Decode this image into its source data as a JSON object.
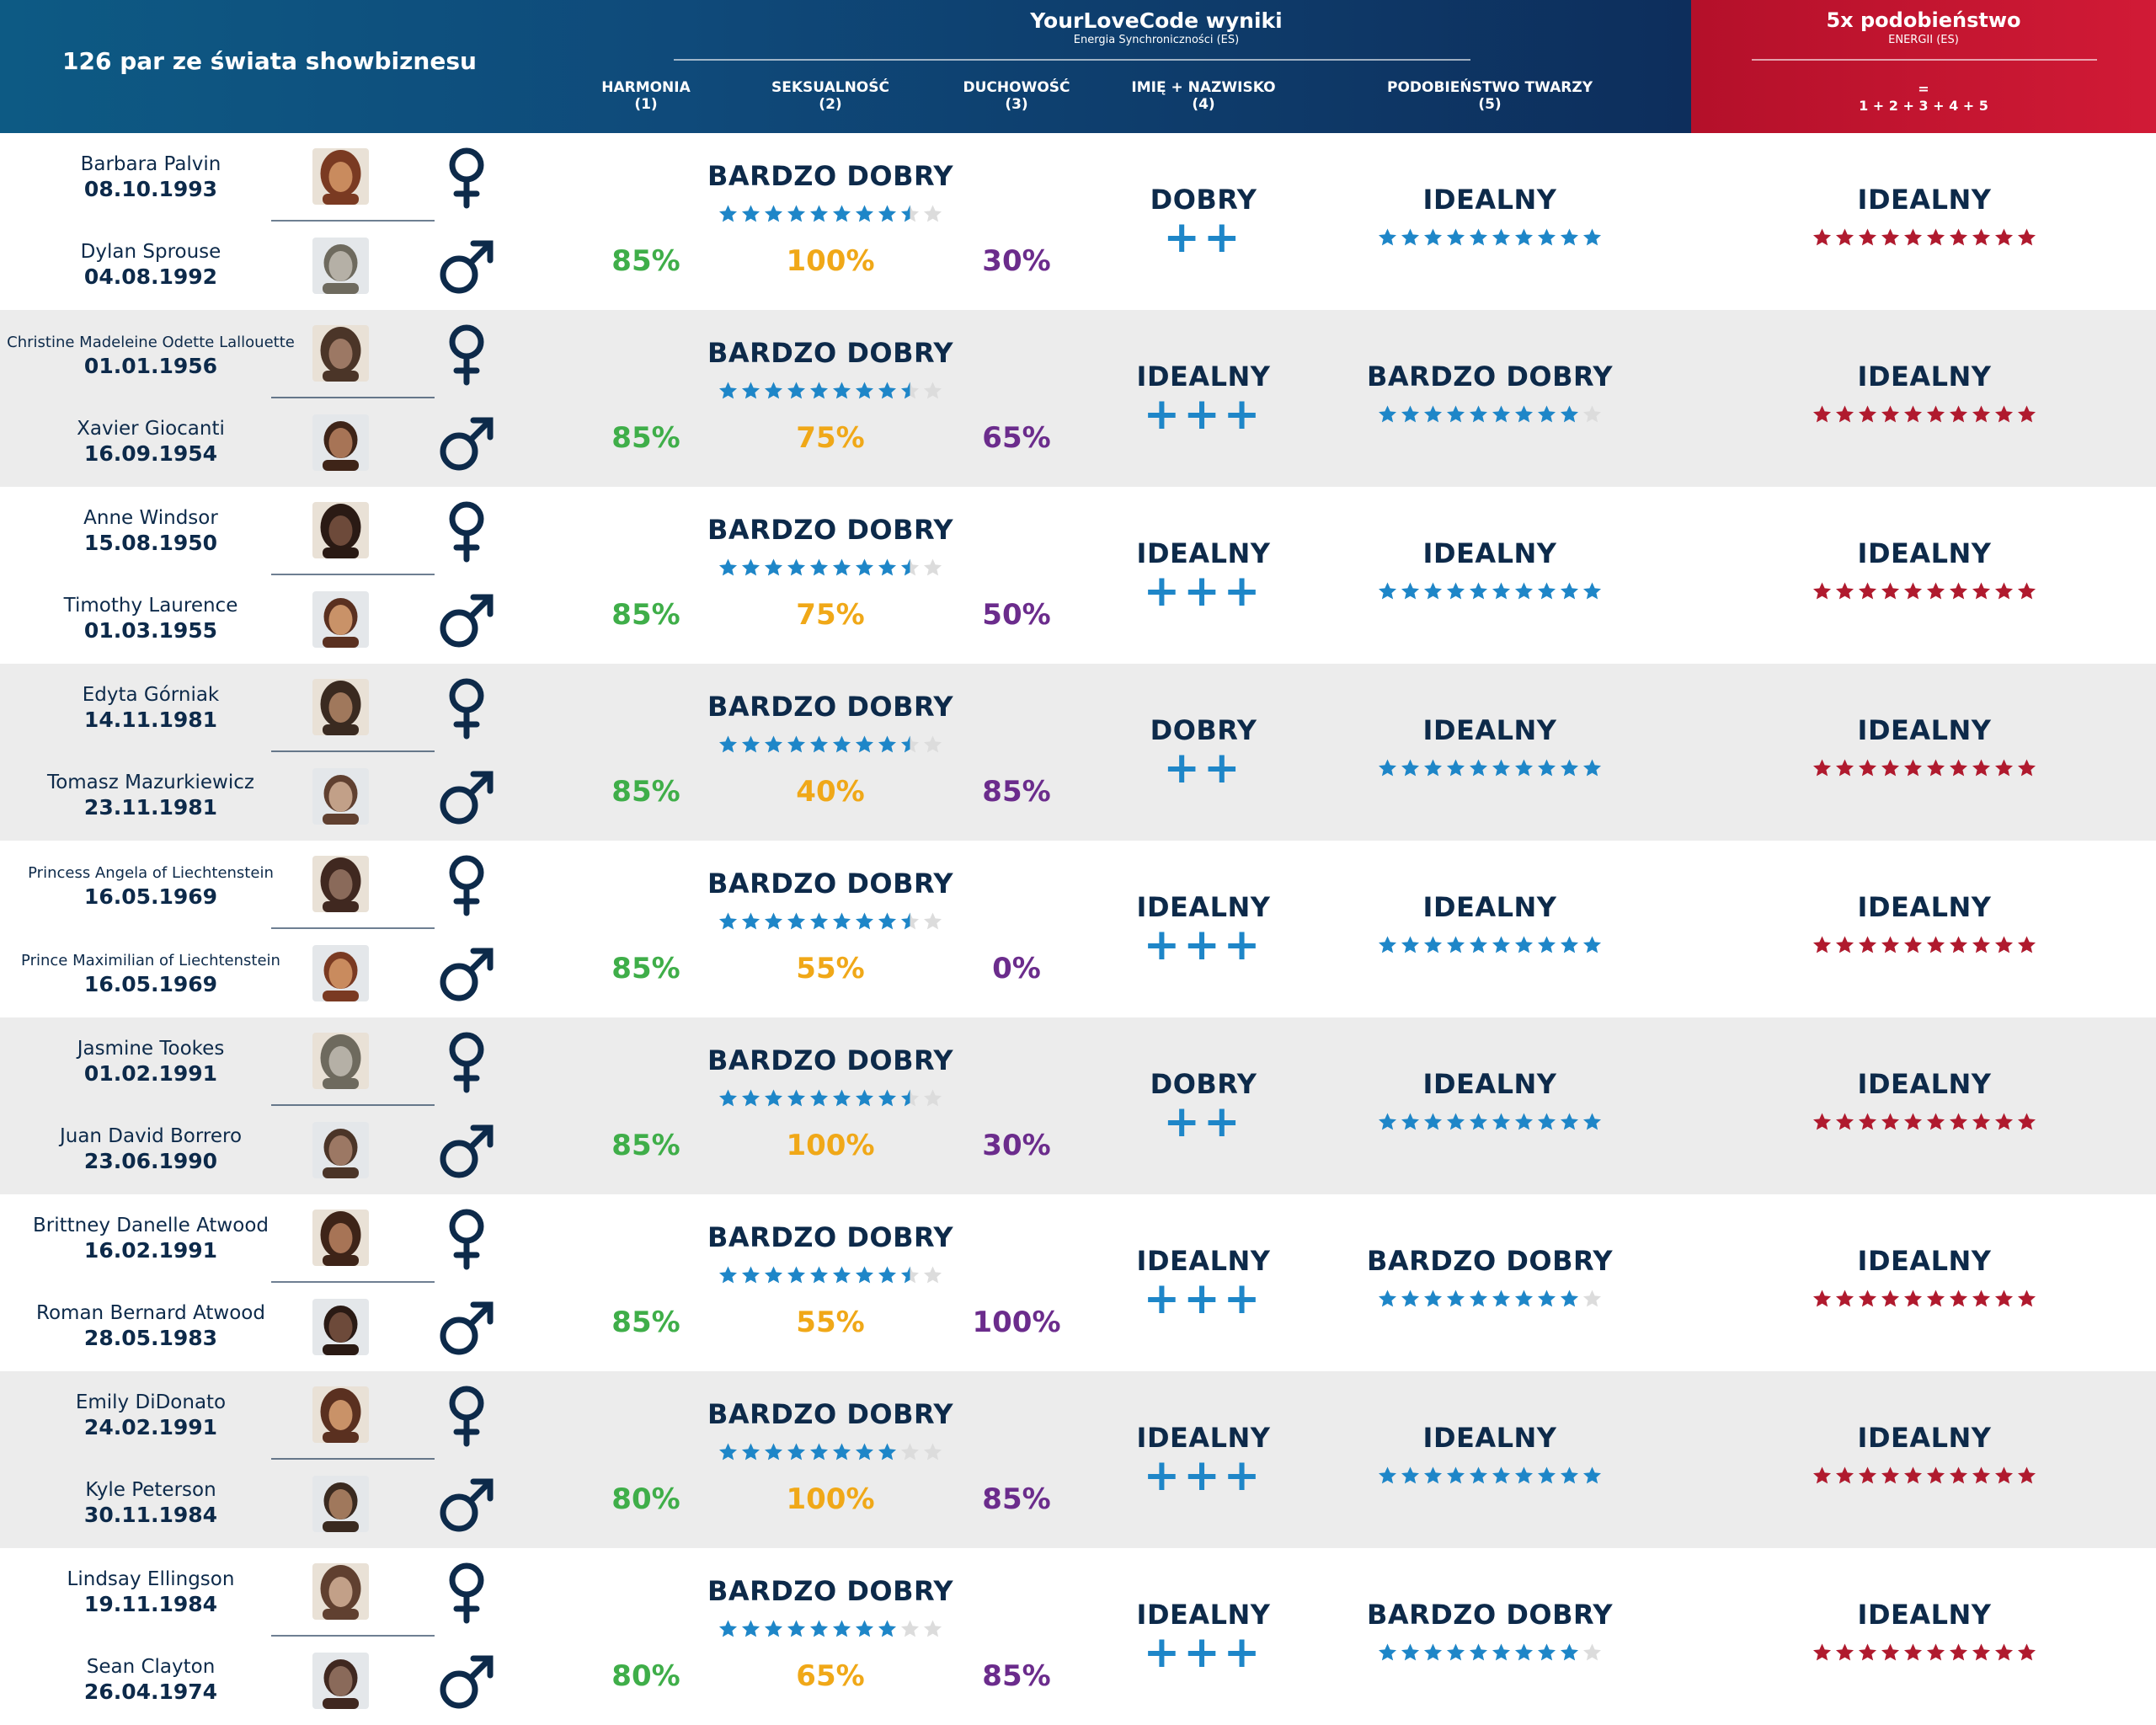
{
  "header": {
    "left_title": "126 par ze świata showbiznesu",
    "brand_title": "YourLoveCode wyniki",
    "brand_subtitle": "Energia Synchroniczności (ES)",
    "cols": [
      {
        "name": "HARMONIA",
        "num": "(1)"
      },
      {
        "name": "SEKSUALNOŚĆ",
        "num": "(2)"
      },
      {
        "name": "DUCHOWOŚĆ",
        "num": "(3)"
      },
      {
        "name": "IMIĘ + NAZWISKO",
        "num": "(4)"
      },
      {
        "name": "PODOBIEŃSTWO TWARZY",
        "num": "(5)"
      }
    ],
    "red_title": "5x podobieństwo",
    "red_subtitle": "ENERGII (ES)",
    "red_eq_top": "=",
    "red_eq_bottom": "1 + 2 + 3 + 4 + 5"
  },
  "colors": {
    "green": "#3fae49",
    "yellow": "#f0a818",
    "purple": "#6b2c8c",
    "blue_star": "#1e86c8",
    "red_star": "#b01a2e",
    "grey_star": "#dcdcdc",
    "navy": "#0d2a4a"
  },
  "rows": [
    {
      "woman": {
        "name": "Barbara Palvin",
        "date": "08.10.1993",
        "small": false
      },
      "man": {
        "name": "Dylan Sprouse",
        "date": "04.08.1992",
        "small": false
      },
      "harmonia": "85%",
      "seks": "100%",
      "duch": "30%",
      "overall": "BARDZO DOBRY",
      "overall_stars": 8.5,
      "imie": "DOBRY",
      "imie_plus": "++",
      "twarz": "IDEALNY",
      "twarz_stars": 10,
      "total": "IDEALNY",
      "total_stars": 10
    },
    {
      "woman": {
        "name": "Christine Madeleine Odette Lallouette",
        "date": "01.01.1956",
        "small": true
      },
      "man": {
        "name": "Xavier Giocanti",
        "date": "16.09.1954",
        "small": false
      },
      "harmonia": "85%",
      "seks": "75%",
      "duch": "65%",
      "overall": "BARDZO DOBRY",
      "overall_stars": 8.5,
      "imie": "IDEALNY",
      "imie_plus": "+++",
      "twarz": "BARDZO DOBRY",
      "twarz_stars": 9,
      "total": "IDEALNY",
      "total_stars": 10
    },
    {
      "woman": {
        "name": "Anne Windsor",
        "date": "15.08.1950",
        "small": false
      },
      "man": {
        "name": "Timothy Laurence",
        "date": "01.03.1955",
        "small": false
      },
      "harmonia": "85%",
      "seks": "75%",
      "duch": "50%",
      "overall": "BARDZO DOBRY",
      "overall_stars": 8.5,
      "imie": "IDEALNY",
      "imie_plus": "+++",
      "twarz": "IDEALNY",
      "twarz_stars": 10,
      "total": "IDEALNY",
      "total_stars": 10
    },
    {
      "woman": {
        "name": "Edyta Górniak",
        "date": "14.11.1981",
        "small": false
      },
      "man": {
        "name": "Tomasz Mazurkiewicz",
        "date": "23.11.1981",
        "small": false
      },
      "harmonia": "85%",
      "seks": "40%",
      "duch": "85%",
      "overall": "BARDZO DOBRY",
      "overall_stars": 8.5,
      "imie": "DOBRY",
      "imie_plus": "++",
      "twarz": "IDEALNY",
      "twarz_stars": 10,
      "total": "IDEALNY",
      "total_stars": 10
    },
    {
      "woman": {
        "name": "Princess Angela of Liechtenstein",
        "date": "16.05.1969",
        "small": true
      },
      "man": {
        "name": "Prince Maximilian of Liechtenstein",
        "date": "16.05.1969",
        "small": true
      },
      "harmonia": "85%",
      "seks": "55%",
      "duch": "0%",
      "overall": "BARDZO DOBRY",
      "overall_stars": 8.5,
      "imie": "IDEALNY",
      "imie_plus": "+++",
      "twarz": "IDEALNY",
      "twarz_stars": 10,
      "total": "IDEALNY",
      "total_stars": 10
    },
    {
      "woman": {
        "name": "Jasmine Tookes",
        "date": "01.02.1991",
        "small": false
      },
      "man": {
        "name": "Juan David Borrero",
        "date": "23.06.1990",
        "small": false
      },
      "harmonia": "85%",
      "seks": "100%",
      "duch": "30%",
      "overall": "BARDZO DOBRY",
      "overall_stars": 8.5,
      "imie": "DOBRY",
      "imie_plus": "++",
      "twarz": "IDEALNY",
      "twarz_stars": 10,
      "total": "IDEALNY",
      "total_stars": 10
    },
    {
      "woman": {
        "name": "Brittney Danelle Atwood",
        "date": "16.02.1991",
        "small": false
      },
      "man": {
        "name": "Roman Bernard Atwood",
        "date": "28.05.1983",
        "small": false
      },
      "harmonia": "85%",
      "seks": "55%",
      "duch": "100%",
      "overall": "BARDZO DOBRY",
      "overall_stars": 8.5,
      "imie": "IDEALNY",
      "imie_plus": "+++",
      "twarz": "BARDZO DOBRY",
      "twarz_stars": 9,
      "total": "IDEALNY",
      "total_stars": 10
    },
    {
      "woman": {
        "name": "Emily DiDonato",
        "date": "24.02.1991",
        "small": false
      },
      "man": {
        "name": "Kyle Peterson",
        "date": "30.11.1984",
        "small": false
      },
      "harmonia": "80%",
      "seks": "100%",
      "duch": "85%",
      "overall": "BARDZO DOBRY",
      "overall_stars": 8,
      "imie": "IDEALNY",
      "imie_plus": "+++",
      "twarz": "IDEALNY",
      "twarz_stars": 10,
      "total": "IDEALNY",
      "total_stars": 10
    },
    {
      "woman": {
        "name": "Lindsay Ellingson",
        "date": "19.11.1984",
        "small": false
      },
      "man": {
        "name": "Sean Clayton",
        "date": "26.04.1974",
        "small": false
      },
      "harmonia": "80%",
      "seks": "65%",
      "duch": "85%",
      "overall": "BARDZO DOBRY",
      "overall_stars": 8,
      "imie": "IDEALNY",
      "imie_plus": "+++",
      "twarz": "BARDZO DOBRY",
      "twarz_stars": 9,
      "total": "IDEALNY",
      "total_stars": 10
    }
  ]
}
